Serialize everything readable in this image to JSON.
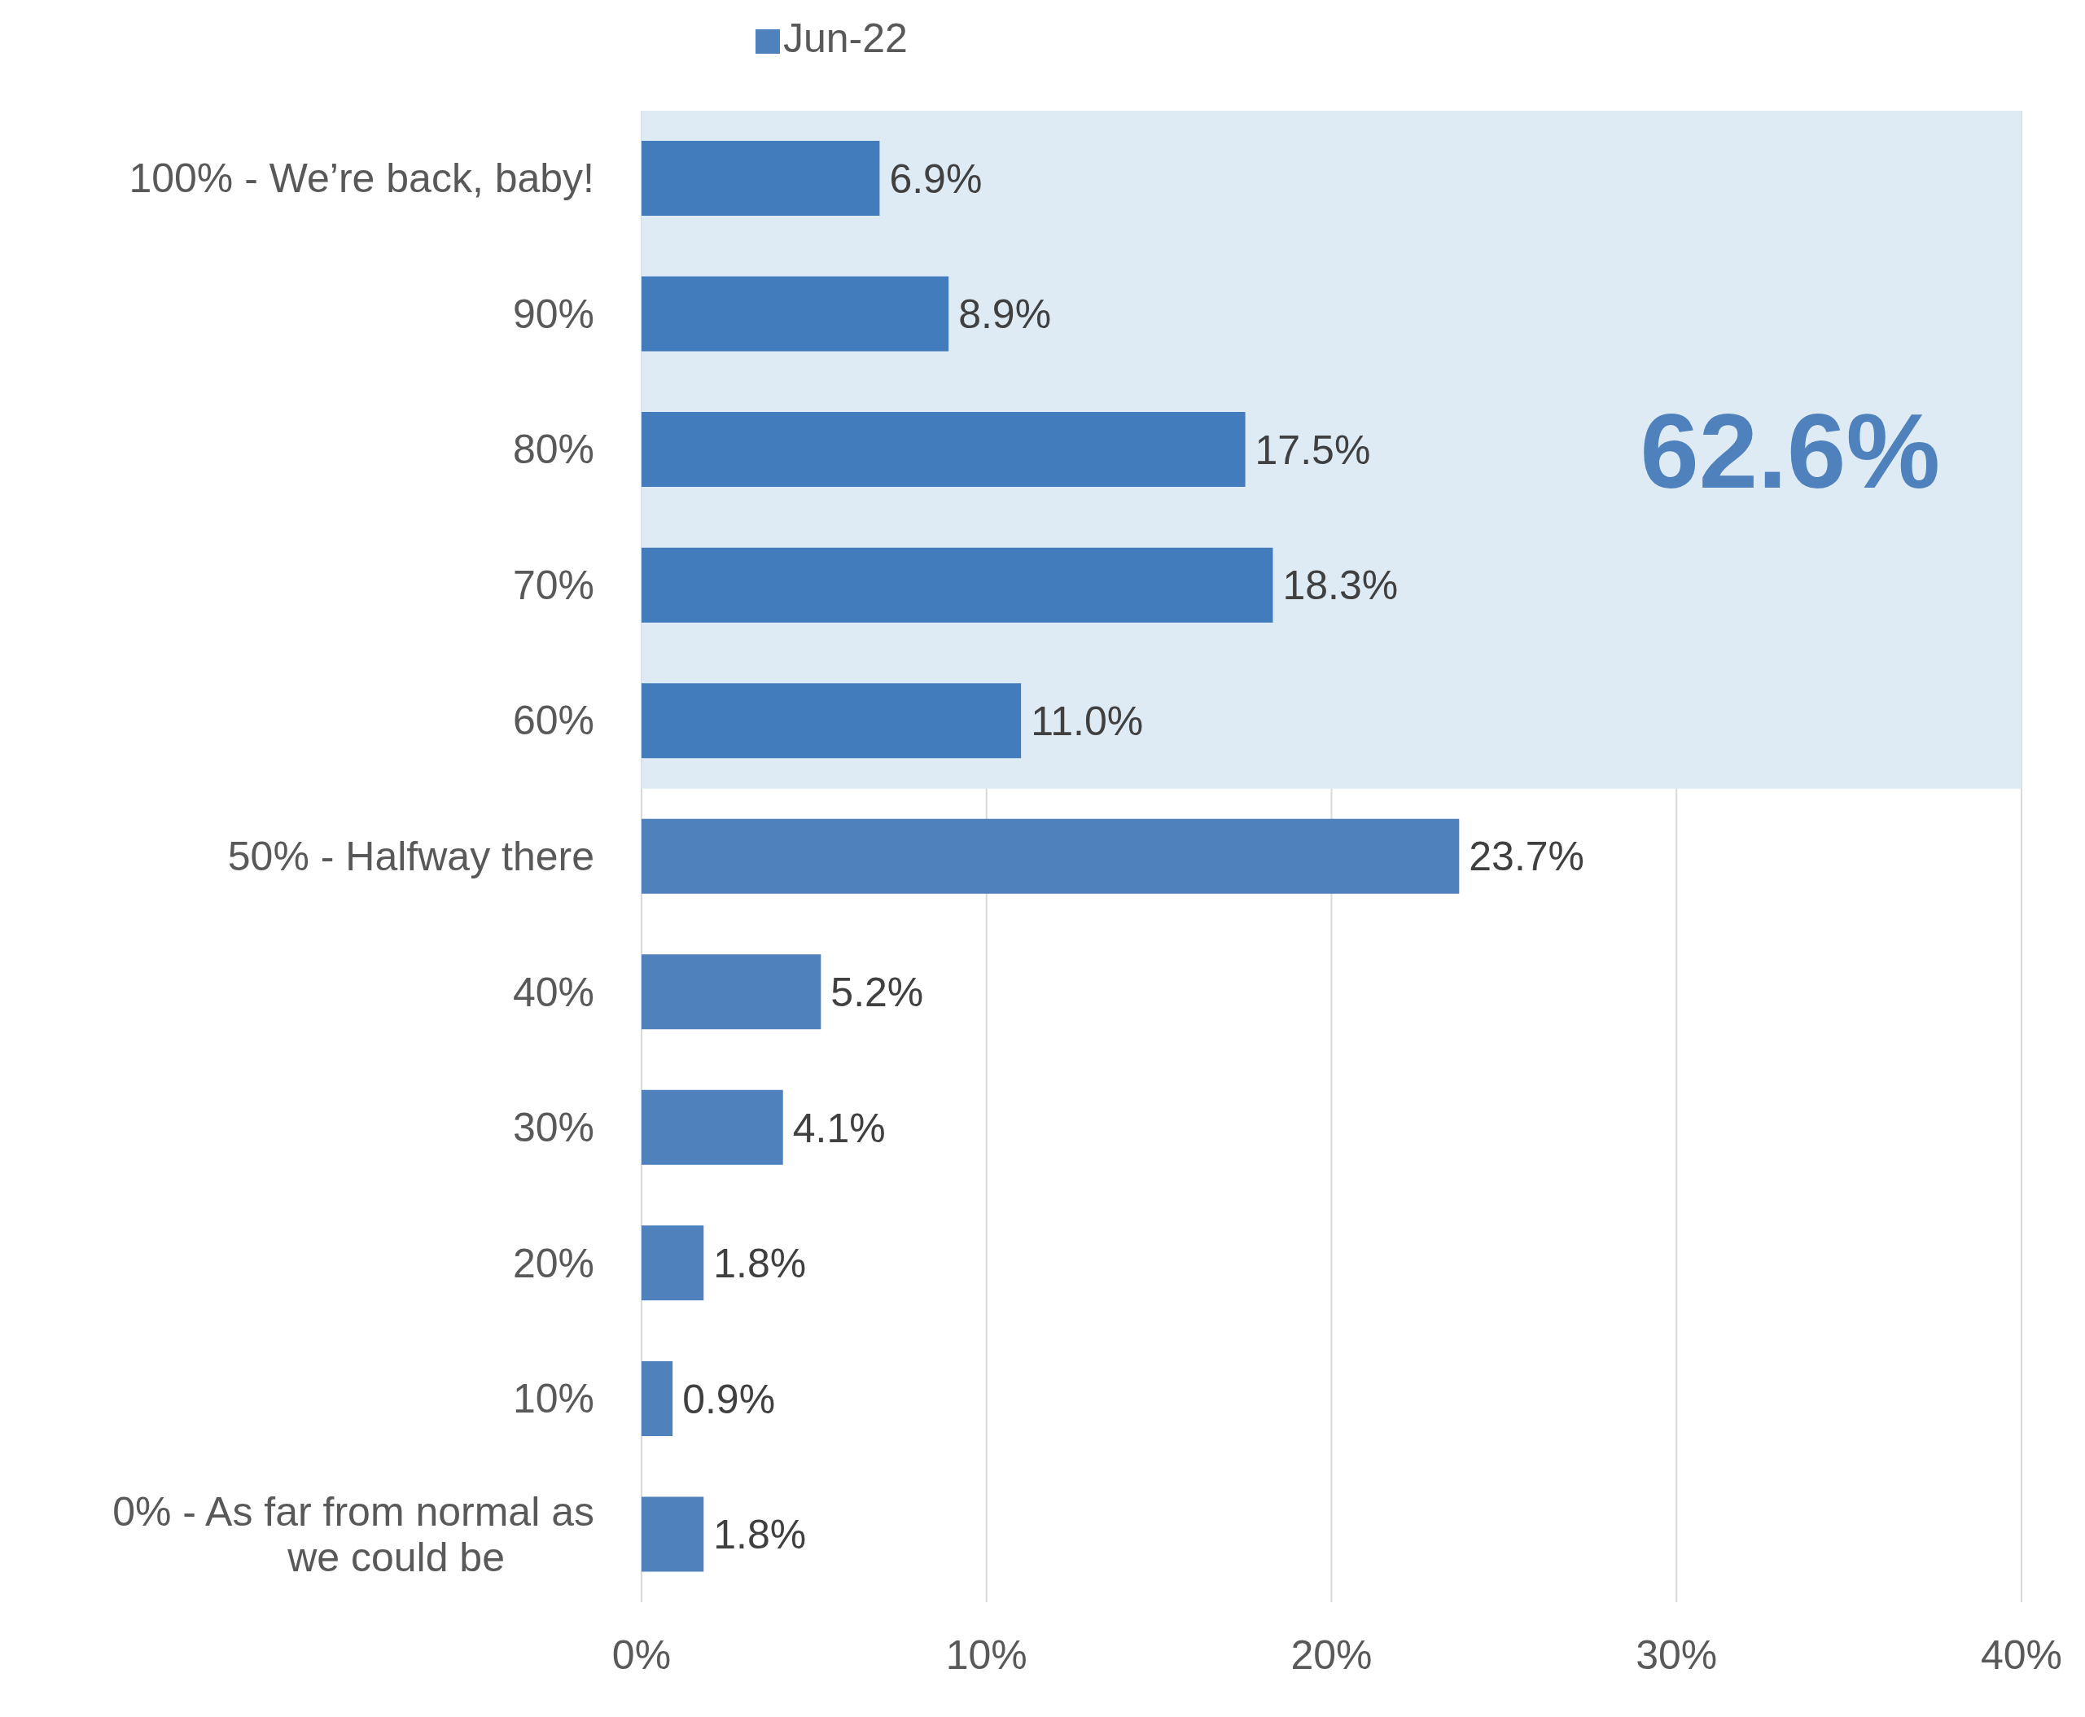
{
  "chart_data": {
    "type": "bar",
    "orientation": "horizontal",
    "categories": [
      "100% - We’re back, baby!",
      "90%",
      "80%",
      "70%",
      "60%",
      "50% - Halfway there",
      "40%",
      "30%",
      "20%",
      "10%",
      "0% - As far from normal as we could be"
    ],
    "series": [
      {
        "name": "Jun-22",
        "color": "#4f81bd",
        "colors": [
          "#427cbd",
          "#427cbd",
          "#427cbd",
          "#427cbd",
          "#427cbd",
          "#4f81bd",
          "#4f81bd",
          "#4f81bd",
          "#4f81bd",
          "#4f81bd",
          "#4f81bd"
        ],
        "values": [
          6.9,
          8.9,
          17.5,
          18.3,
          11.0,
          23.7,
          5.2,
          4.1,
          1.8,
          0.9,
          1.8
        ],
        "value_labels": [
          "6.9%",
          "8.9%",
          "17.5%",
          "18.3%",
          "11.0%",
          "23.7%",
          "5.2%",
          "4.1%",
          "1.8%",
          "0.9%",
          "1.8%"
        ]
      }
    ],
    "xlim": [
      0,
      40
    ],
    "xticks": [
      {
        "value": 0,
        "label": "0%"
      },
      {
        "value": 10,
        "label": "10%"
      },
      {
        "value": 20,
        "label": "20%"
      },
      {
        "value": 30,
        "label": "30%"
      },
      {
        "value": 40,
        "label": "40%"
      }
    ],
    "bands": [
      {
        "axis": "y",
        "from": "100% - We’re back, baby!",
        "to": "60%",
        "label": "62.6%",
        "color": "#deebf5"
      }
    ],
    "grid": "x",
    "legend": "top"
  }
}
